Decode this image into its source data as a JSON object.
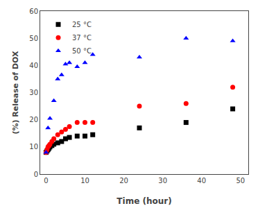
{
  "chart_data": {
    "type": "scatter",
    "xlabel": "Time (hour)",
    "ylabel": "(%) Release of DOX",
    "series": [
      {
        "name": "25 °C",
        "color": "black",
        "marker": "square",
        "x": [
          0,
          0.25,
          0.5,
          0.75,
          1.0,
          1.5,
          2.0,
          3.0,
          4.0,
          5.0,
          6.0,
          8.0,
          10.0,
          12.0,
          24.0,
          36.0,
          48.0
        ],
        "values": [
          8.0,
          8.5,
          9.0,
          9.5,
          10.0,
          10.5,
          11.0,
          11.5,
          12.0,
          13.0,
          13.5,
          14.0,
          14.0,
          14.5,
          17.0,
          19.0,
          24.0
        ]
      },
      {
        "name": "37 °C",
        "color": "red",
        "marker": "circle",
        "x": [
          0,
          0.25,
          0.5,
          0.75,
          1.0,
          1.5,
          2.0,
          3.0,
          4.0,
          5.0,
          6.0,
          8.0,
          10.0,
          12.0,
          24.0,
          36.0,
          48.0
        ],
        "values": [
          8.0,
          9.0,
          10.0,
          10.5,
          11.0,
          12.0,
          13.0,
          14.5,
          15.5,
          16.5,
          17.5,
          19.0,
          19.0,
          19.0,
          25.0,
          26.0,
          32.0
        ]
      },
      {
        "name": "50 °C",
        "color": "blue",
        "marker": "triangle",
        "x": [
          0,
          0.5,
          1.0,
          2.0,
          3.0,
          4.0,
          5.0,
          6.0,
          8.0,
          10.0,
          12.0,
          24.0,
          36.0,
          48.0
        ],
        "values": [
          8.0,
          17.0,
          20.5,
          27.0,
          35.0,
          36.5,
          40.5,
          41.0,
          39.5,
          41.0,
          44.0,
          43.0,
          50.0,
          49.0
        ]
      }
    ],
    "xlim": [
      -1.5,
      52
    ],
    "xticks": [
      0,
      10,
      20,
      30,
      40,
      50
    ],
    "ylim": [
      0,
      60
    ],
    "yticks": [
      0,
      10,
      20,
      30,
      40,
      50,
      60
    ],
    "grid": false,
    "legend": "upper left"
  }
}
